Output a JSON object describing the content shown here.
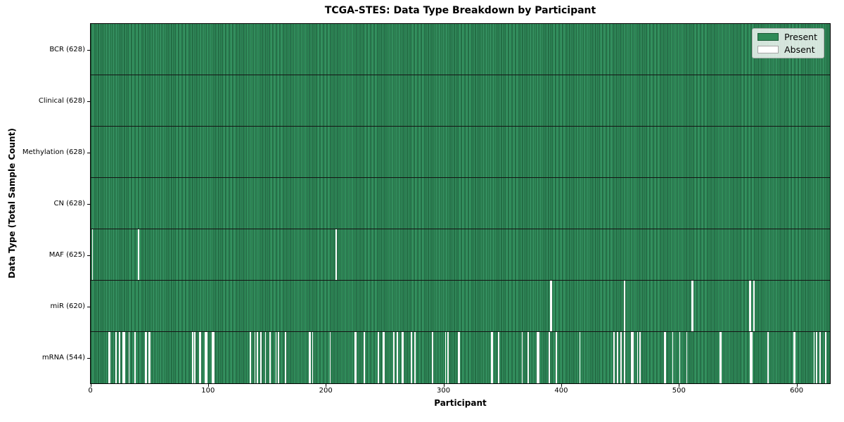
{
  "figure": {
    "title": "TCGA-STES: Data Type Breakdown by Participant",
    "x_axis_label": "Participant",
    "y_axis_label": "Data Type (Total Sample Count)"
  },
  "chart_data": {
    "type": "heatmap",
    "title": "TCGA-STES: Data Type Breakdown by Participant",
    "xlabel": "Participant",
    "ylabel": "Data Type (Total Sample Count)",
    "x_ticks": [
      0,
      100,
      200,
      300,
      400,
      500,
      600
    ],
    "xlim": [
      0,
      628
    ],
    "n_participants": 628,
    "grid": false,
    "legend_position": "upper right",
    "colors": {
      "present": "#2e8b57",
      "present_edge": "#16482c",
      "absent": "#ffffff",
      "row_separator": "#141414"
    },
    "legend": [
      {
        "label": "Present",
        "color": "#2e8b57"
      },
      {
        "label": "Absent",
        "color": "#ffffff"
      }
    ],
    "rows": [
      {
        "name": "bcr",
        "label": "BCR (628)",
        "present_count": 628,
        "absent_participants": []
      },
      {
        "name": "clinical",
        "label": "Clinical (628)",
        "present_count": 628,
        "absent_participants": []
      },
      {
        "name": "methylation",
        "label": "Methylation (628)",
        "present_count": 628,
        "absent_participants": []
      },
      {
        "name": "cn",
        "label": "CN (628)",
        "present_count": 628,
        "absent_participants": []
      },
      {
        "name": "maf",
        "label": "MAF (625)",
        "present_count": 625,
        "absent_participants": [
          1,
          40,
          208
        ]
      },
      {
        "name": "mir",
        "label": "miR (620)",
        "present_count": 620,
        "absent_participants": [
          390,
          391,
          453,
          510,
          511,
          559,
          560,
          563
        ]
      },
      {
        "name": "mrna",
        "label": "mRNA (544)",
        "present_count": 544,
        "absent_participants": [
          15,
          16,
          21,
          24,
          27,
          28,
          32,
          37,
          46,
          47,
          49,
          50,
          86,
          88,
          92,
          93,
          97,
          98,
          103,
          104,
          135,
          139,
          141,
          144,
          148,
          152,
          157,
          159,
          165,
          185,
          186,
          188,
          203,
          224,
          225,
          232,
          244,
          248,
          249,
          257,
          260,
          264,
          265,
          272,
          275,
          290,
          301,
          303,
          312,
          313,
          340,
          341,
          346,
          366,
          371,
          379,
          380,
          389,
          395,
          415,
          444,
          447,
          450,
          453,
          459,
          460,
          464,
          466,
          487,
          488,
          494,
          500,
          506,
          534,
          535,
          560,
          561,
          575,
          597,
          598,
          614,
          616,
          619,
          624
        ]
      }
    ]
  }
}
